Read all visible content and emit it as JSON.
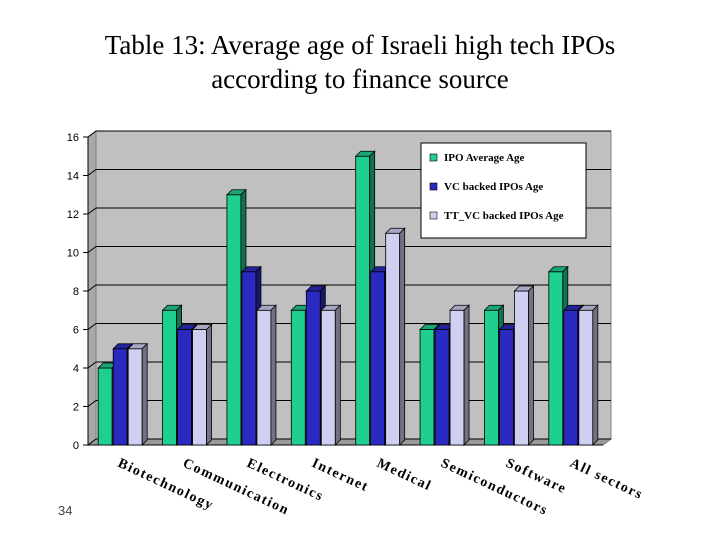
{
  "slide": {
    "title_line1": "Table 13: Average age of Israeli high tech IPOs",
    "title_line2": "according to finance source",
    "page_number": "34"
  },
  "colors": {
    "ipo": "#1fcf8f",
    "vc": "#2a2ac0",
    "ttvc": "#cfcff2",
    "plot_bg": "#c0c0c0"
  },
  "chart_data": {
    "type": "bar",
    "style": "3d-clustered",
    "categories": [
      "Biotechnology",
      "Communication",
      "Electronics",
      "Internet",
      "Medical",
      "Semiconductors",
      "Software",
      "All sectors"
    ],
    "series": [
      {
        "name": "IPO Average Age",
        "values": [
          4,
          7,
          13,
          7,
          15,
          6,
          7,
          9
        ]
      },
      {
        "name": "VC backed IPOs Age",
        "values": [
          5,
          6,
          9,
          8,
          9,
          6,
          6,
          7
        ]
      },
      {
        "name": "TT_VC backed IPOs Age",
        "values": [
          5,
          6,
          7,
          7,
          11,
          7,
          8,
          7
        ]
      }
    ],
    "yticks": [
      0,
      2,
      4,
      6,
      8,
      10,
      12,
      14,
      16
    ],
    "ylim": [
      0,
      16
    ],
    "grid": true,
    "legend_position": "top-right"
  }
}
